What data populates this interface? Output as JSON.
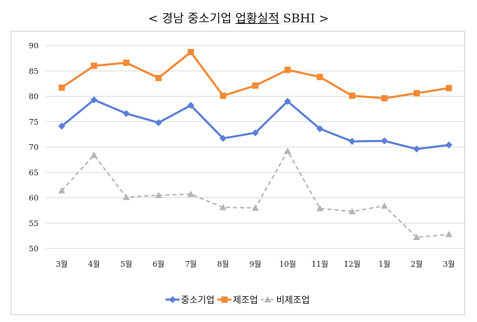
{
  "chart_data": {
    "type": "line",
    "title_parts": [
      "< 경남 중소기업 ",
      "업황실적",
      " SBHI >"
    ],
    "categories": [
      "3월",
      "4월",
      "5월",
      "6월",
      "7월",
      "8월",
      "9월",
      "10월",
      "11월",
      "12월",
      "1월",
      "2월",
      "3월"
    ],
    "ylim": [
      50,
      90
    ],
    "yticks": [
      "50",
      "55",
      "60",
      "65",
      "70",
      "75",
      "80",
      "85",
      "90"
    ],
    "grid": true,
    "legend_position": "bottom",
    "series": [
      {
        "name": "중소기업",
        "color": "#5b7fd6",
        "marker": "diamond",
        "dashed": false,
        "values": [
          74.1,
          79.3,
          76.6,
          74.8,
          78.2,
          71.7,
          72.8,
          79.0,
          73.6,
          71.1,
          71.2,
          69.6,
          70.4
        ]
      },
      {
        "name": "제조업",
        "color": "#f28a36",
        "marker": "square",
        "dashed": false,
        "values": [
          81.7,
          86.0,
          86.6,
          83.6,
          88.7,
          80.1,
          82.1,
          85.2,
          83.8,
          80.1,
          79.6,
          80.6,
          81.6
        ]
      },
      {
        "name": "비제조업",
        "color": "#b4b4b4",
        "marker": "triangle",
        "dashed": true,
        "values": [
          61.4,
          68.4,
          60.1,
          60.5,
          60.7,
          58.1,
          58.0,
          69.2,
          57.9,
          57.3,
          58.4,
          52.2,
          52.8
        ]
      }
    ]
  }
}
